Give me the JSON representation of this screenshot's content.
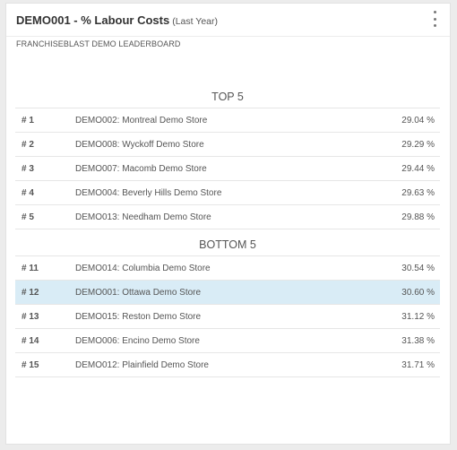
{
  "header": {
    "title": "DEMO001 - % Labour Costs",
    "period": "(Last Year)",
    "menu_icon": "vertical-ellipsis-icon"
  },
  "subtitle": "FRANCHISEBLAST DEMO LEADERBOARD",
  "top": {
    "heading": "TOP 5",
    "rows": [
      {
        "rank": "# 1",
        "store": "DEMO002: Montreal Demo Store",
        "value": "29.04 %"
      },
      {
        "rank": "# 2",
        "store": "DEMO008: Wyckoff Demo Store",
        "value": "29.29 %"
      },
      {
        "rank": "# 3",
        "store": "DEMO007: Macomb Demo Store",
        "value": "29.44 %"
      },
      {
        "rank": "# 4",
        "store": "DEMO004: Beverly Hills Demo Store",
        "value": "29.63 %"
      },
      {
        "rank": "# 5",
        "store": "DEMO013: Needham Demo Store",
        "value": "29.88 %"
      }
    ]
  },
  "bottom": {
    "heading": "BOTTOM 5",
    "rows": [
      {
        "rank": "# 11",
        "store": "DEMO014: Columbia Demo Store",
        "value": "30.54 %"
      },
      {
        "rank": "# 12",
        "store": "DEMO001: Ottawa Demo Store",
        "value": "30.60 %",
        "highlighted": true
      },
      {
        "rank": "# 13",
        "store": "DEMO015: Reston Demo Store",
        "value": "31.12 %"
      },
      {
        "rank": "# 14",
        "store": "DEMO006: Encino Demo Store",
        "value": "31.38 %"
      },
      {
        "rank": "# 15",
        "store": "DEMO012: Plainfield Demo Store",
        "value": "31.71 %"
      }
    ]
  },
  "colors": {
    "highlight_row": "#d9ecf6",
    "background": "#ececec"
  }
}
